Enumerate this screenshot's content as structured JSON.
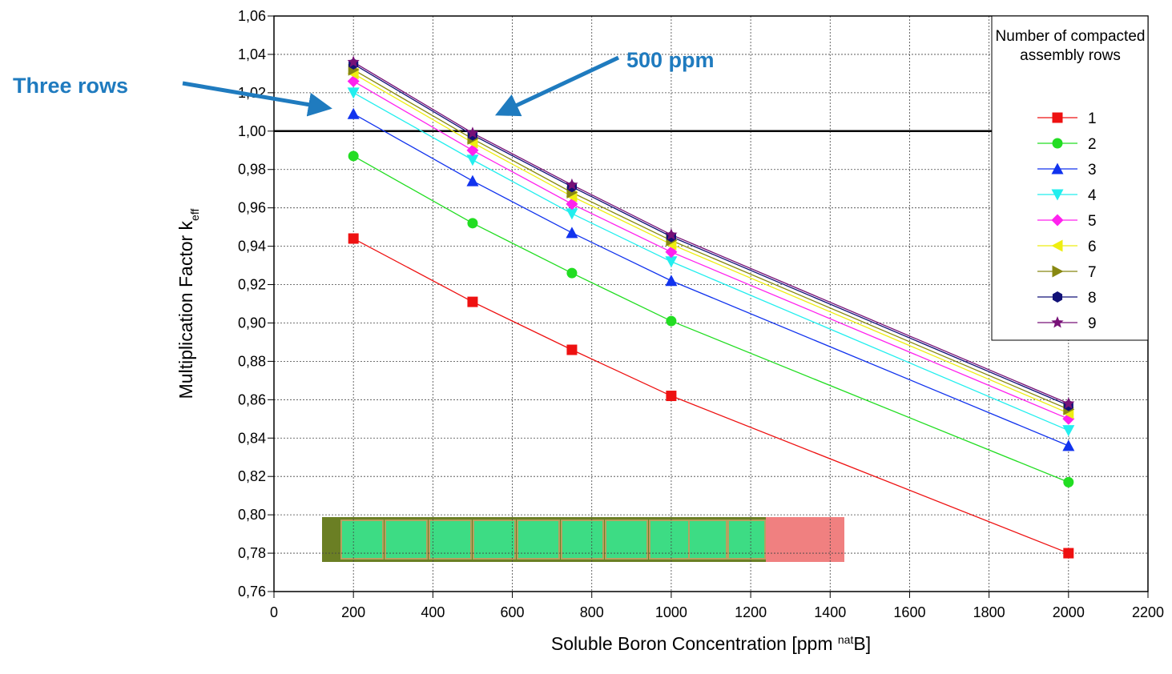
{
  "chart_data": {
    "type": "line",
    "x_label": [
      "Soluble Boron Concentration [ppm ",
      "nat",
      "B]"
    ],
    "y_label": [
      "Multiplication Factor k",
      "eff"
    ],
    "x": [
      200,
      500,
      750,
      1000,
      2000
    ],
    "series": [
      {
        "name": "1",
        "color": "#ee1111",
        "marker": "square",
        "values": [
          0.944,
          0.911,
          0.886,
          0.862,
          0.78
        ]
      },
      {
        "name": "2",
        "color": "#22dd22",
        "marker": "circle",
        "values": [
          0.987,
          0.952,
          0.926,
          0.901,
          0.817
        ]
      },
      {
        "name": "3",
        "color": "#1133ee",
        "marker": "triangle-up",
        "values": [
          1.009,
          0.974,
          0.947,
          0.922,
          0.836
        ]
      },
      {
        "name": "4",
        "color": "#22eeee",
        "marker": "triangle-down",
        "values": [
          1.02,
          0.985,
          0.957,
          0.932,
          0.844
        ]
      },
      {
        "name": "5",
        "color": "#ff22ee",
        "marker": "diamond",
        "values": [
          1.026,
          0.99,
          0.962,
          0.937,
          0.85
        ]
      },
      {
        "name": "6",
        "color": "#eeee11",
        "marker": "triangle-left",
        "values": [
          1.03,
          0.994,
          0.966,
          0.941,
          0.853
        ]
      },
      {
        "name": "7",
        "color": "#888811",
        "marker": "triangle-right",
        "values": [
          1.032,
          0.996,
          0.968,
          0.943,
          0.855
        ]
      },
      {
        "name": "8",
        "color": "#111177",
        "marker": "hexagon",
        "values": [
          1.035,
          0.998,
          0.971,
          0.945,
          0.857
        ]
      },
      {
        "name": "9",
        "color": "#771177",
        "marker": "star",
        "values": [
          1.036,
          0.999,
          0.972,
          0.946,
          0.858
        ]
      }
    ],
    "xlim": [
      0,
      2200
    ],
    "xticks": [
      0,
      200,
      400,
      600,
      800,
      1000,
      1200,
      1400,
      1600,
      1800,
      2000,
      2200
    ],
    "ylim": [
      0.76,
      1.06
    ],
    "yticks": [
      {
        "value": 0.76,
        "label": "0,76"
      },
      {
        "value": 0.78,
        "label": "0,78"
      },
      {
        "value": 0.8,
        "label": "0,80"
      },
      {
        "value": 0.82,
        "label": "0,82"
      },
      {
        "value": 0.84,
        "label": "0,84"
      },
      {
        "value": 0.86,
        "label": "0,86"
      },
      {
        "value": 0.88,
        "label": "0,88"
      },
      {
        "value": 0.9,
        "label": "0,90"
      },
      {
        "value": 0.92,
        "label": "0,92"
      },
      {
        "value": 0.94,
        "label": "0,94"
      },
      {
        "value": 0.96,
        "label": "0,96"
      },
      {
        "value": 0.98,
        "label": "0,98"
      },
      {
        "value": 1.0,
        "label": "1,00"
      },
      {
        "value": 1.02,
        "label": "1,02"
      },
      {
        "value": 1.04,
        "label": "1,04"
      },
      {
        "value": 1.06,
        "label": "1,06"
      }
    ],
    "grid": true,
    "reference_line": 1.0,
    "legend_title": "Number of compacted assembly rows",
    "legend": "upper right",
    "annotations": [
      "Three rows",
      "500 ppm"
    ]
  }
}
